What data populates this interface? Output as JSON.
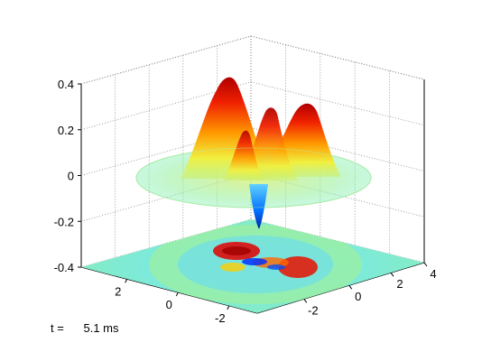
{
  "chart_data": {
    "type": "surface",
    "title": "",
    "xlabel": "",
    "ylabel": "",
    "zlabel": "",
    "z_ticks": [
      "0.4",
      "0.2",
      "0",
      "-0.2",
      "-0.4"
    ],
    "z_tick_values": [
      0.4,
      0.2,
      0,
      -0.2,
      -0.4
    ],
    "left_axis_ticks": [
      "2",
      "0",
      "-2"
    ],
    "right_axis_ticks": [
      "-2",
      "0",
      "2",
      "4"
    ],
    "zlim": [
      -0.4,
      0.4
    ],
    "grid": true,
    "colormap": "jet",
    "surface": {
      "domain_radius": 4,
      "peaks": [
        {
          "x": -1.2,
          "y": -0.6,
          "z": 0.41
        },
        {
          "x": 0.4,
          "y": 1.6,
          "z": 0.34
        },
        {
          "x": 0.0,
          "y": 0.4,
          "z": 0.28
        },
        {
          "x": -0.4,
          "y": 0.0,
          "z": 0.22
        }
      ],
      "trough": {
        "x": 0.6,
        "y": -0.6,
        "z": -0.26
      }
    },
    "projection_plane_z": -0.4
  },
  "caption": {
    "label": "t =",
    "value": "5.1 ms"
  }
}
